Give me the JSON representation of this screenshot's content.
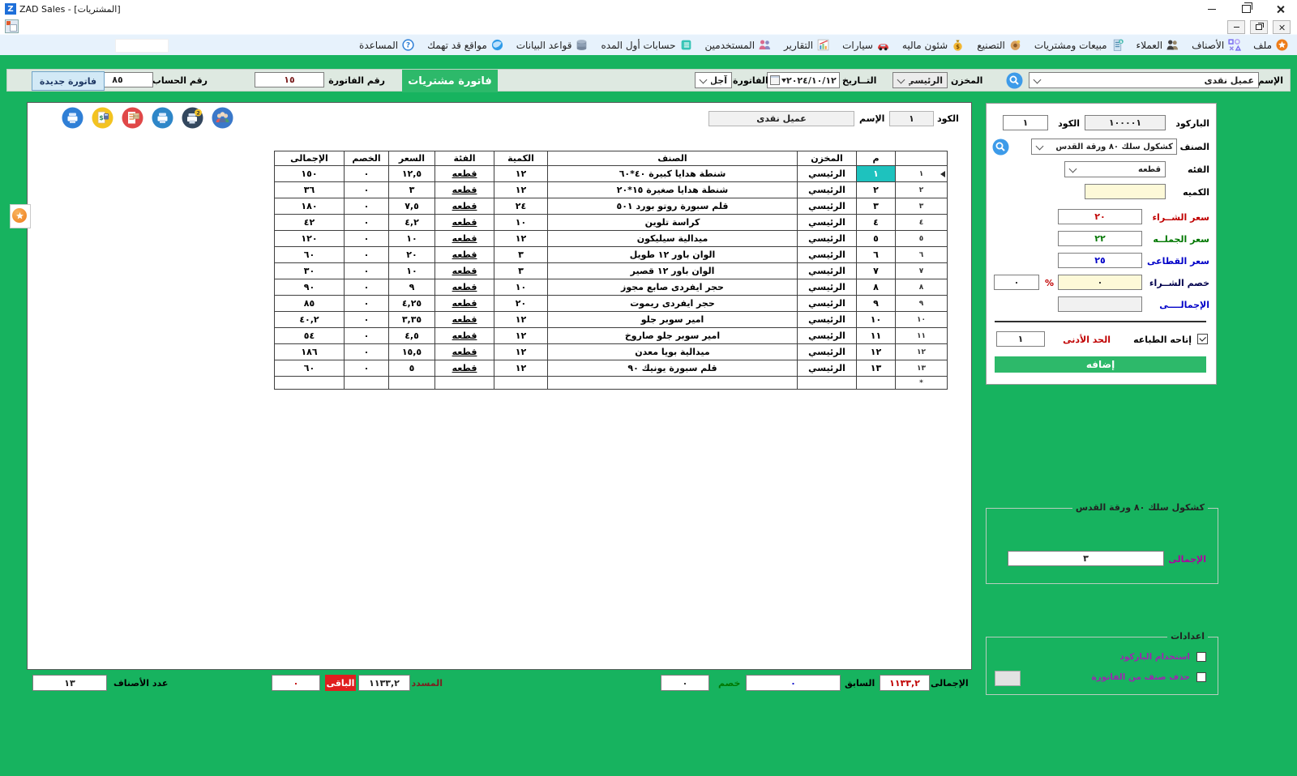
{
  "window": {
    "title": "ZAD Sales - [المشتريات]"
  },
  "menu": {
    "search_value": "",
    "items": [
      {
        "label": "ملف",
        "icon": "star-icon"
      },
      {
        "label": "الأصناف",
        "icon": "shapes-icon"
      },
      {
        "label": "العملاء",
        "icon": "people-icon"
      },
      {
        "label": "مبيعات ومشتريات",
        "icon": "invoice-icon"
      },
      {
        "label": "التصنيع",
        "icon": "manufacturing-icon"
      },
      {
        "label": "شئون ماليه",
        "icon": "money-bag-icon"
      },
      {
        "label": "سيارات",
        "icon": "car-icon"
      },
      {
        "label": "التقارير",
        "icon": "chart-icon"
      },
      {
        "label": "المستخدمين",
        "icon": "users-icon"
      },
      {
        "label": "حسابات أول المده",
        "icon": "ledger-icon"
      },
      {
        "label": "قواعد البيانات",
        "icon": "database-icon"
      },
      {
        "label": "مواقع قد تهمك",
        "icon": "globe-icon"
      },
      {
        "label": "المساعدة",
        "icon": "help-icon"
      }
    ]
  },
  "topbar": {
    "name_label": "الإسم",
    "name_value": "عميل نقدى",
    "store_label": "المخزن",
    "store_value": "الرئيسي",
    "date_label": "التــاريخ",
    "date_value": "٢٠٢٤/١٠/١٢",
    "invoice_type_label": "الفاتورة",
    "invoice_type_value": "آجل",
    "badge": "فاتورة مشتريات",
    "invoice_no_label": "رقم الفاتورة",
    "invoice_no_value": "١٥",
    "account_no_label": "رقم الحساب",
    "account_no_value": "٨٥",
    "new_invoice_button": "فاتورة جديدة"
  },
  "invoice_header": {
    "code_label": "الكود",
    "code_value": "١",
    "name_label": "الإسم",
    "name_value": "عميل نقدى"
  },
  "grid": {
    "columns": {
      "num": "م",
      "store": "المخزن",
      "item": "الصنف",
      "qty": "الكمية",
      "unit": "الفئة",
      "price": "السعر",
      "discount": "الخصم",
      "total": "الإجمالى"
    },
    "new_row_marker": "*",
    "rows": [
      {
        "no": "١",
        "store": "الرئيسي",
        "item": "شنطة هدايا كبيرة ٤٠*٦٠",
        "qty": "١٢",
        "unit": "قطعه",
        "price": "١٢,٥",
        "discount": "٠",
        "total": "١٥٠"
      },
      {
        "no": "٢",
        "store": "الرئيسي",
        "item": "شنطة هدايا صغيرة ١٥*٢٠",
        "qty": "١٢",
        "unit": "قطعه",
        "price": "٣",
        "discount": "٠",
        "total": "٣٦"
      },
      {
        "no": "٣",
        "store": "الرئيسي",
        "item": "قلم سبورة روتو بورد ٥٠١",
        "qty": "٢٤",
        "unit": "قطعه",
        "price": "٧,٥",
        "discount": "٠",
        "total": "١٨٠"
      },
      {
        "no": "٤",
        "store": "الرئيسي",
        "item": "كراسة تلوين",
        "qty": "١٠",
        "unit": "قطعه",
        "price": "٤,٢",
        "discount": "٠",
        "total": "٤٢"
      },
      {
        "no": "٥",
        "store": "الرئيسي",
        "item": "ميدالية سيليكون",
        "qty": "١٢",
        "unit": "قطعه",
        "price": "١٠",
        "discount": "٠",
        "total": "١٢٠"
      },
      {
        "no": "٦",
        "store": "الرئيسي",
        "item": "الوان باور ١٢ طويل",
        "qty": "٣",
        "unit": "قطعه",
        "price": "٢٠",
        "discount": "٠",
        "total": "٦٠"
      },
      {
        "no": "٧",
        "store": "الرئيسي",
        "item": "الوان باور ١٢ قصير",
        "qty": "٣",
        "unit": "قطعه",
        "price": "١٠",
        "discount": "٠",
        "total": "٣٠"
      },
      {
        "no": "٨",
        "store": "الرئيسي",
        "item": "حجر ايفردى صابع مجوز",
        "qty": "١٠",
        "unit": "قطعه",
        "price": "٩",
        "discount": "٠",
        "total": "٩٠"
      },
      {
        "no": "٩",
        "store": "الرئيسي",
        "item": "حجر ايفردى ريموت",
        "qty": "٢٠",
        "unit": "قطعه",
        "price": "٤,٢٥",
        "discount": "٠",
        "total": "٨٥"
      },
      {
        "no": "١٠",
        "store": "الرئيسي",
        "item": "امير سوبر جلو",
        "qty": "١٢",
        "unit": "قطعه",
        "price": "٣,٣٥",
        "discount": "٠",
        "total": "٤٠,٢"
      },
      {
        "no": "١١",
        "store": "الرئيسي",
        "item": "امير سوبر جلو صاروخ",
        "qty": "١٢",
        "unit": "قطعه",
        "price": "٤,٥",
        "discount": "٠",
        "total": "٥٤"
      },
      {
        "no": "١٢",
        "store": "الرئيسي",
        "item": "ميدالية بويا معدن",
        "qty": "١٢",
        "unit": "قطعه",
        "price": "١٥,٥",
        "discount": "٠",
        "total": "١٨٦"
      },
      {
        "no": "١٣",
        "store": "الرئيسي",
        "item": "قلم سبورة يونيك ٩٠",
        "qty": "١٢",
        "unit": "قطعه",
        "price": "٥",
        "discount": "٠",
        "total": "٦٠"
      }
    ]
  },
  "side_panel": {
    "barcode_label": "الباركود",
    "barcode_value": "١٠٠٠٠١",
    "code_label": "الكود",
    "code_value": "١",
    "item_label": "الصنف",
    "item_value": "كشكول سلك ٨٠ ورقة القدس",
    "unit_label": "الفئه",
    "unit_value": "قطعه",
    "qty_label": "الكميه",
    "qty_value": "",
    "buy_price_label": "سعر الشــراء",
    "buy_price_value": "٢٠",
    "wholesale_price_label": "سعر الجملــه",
    "wholesale_price_value": "٢٢",
    "retail_price_label": "سعر القطاعى",
    "retail_price_value": "٢٥",
    "purchase_discount_label": "خصم الشــراء",
    "purchase_discount_value": "٠",
    "percent_sign": "%",
    "discount_pct_value": "٠",
    "total_label": "الإجمالــــى",
    "total_value": "",
    "allow_print_label": "إتاحه الطباعه",
    "min_limit_label": "الحد الأدنى",
    "min_limit_value": "١",
    "add_button": "إضافه"
  },
  "item_group": {
    "title": "كشكول سلك ٨٠ ورقة القدس",
    "total_label": "الإجمالى",
    "total_value": "٣"
  },
  "settings_group": {
    "title": "اعدادات",
    "barcode_option": "استخدام الباركود",
    "delete_option": "حذف صنف من الفاتورة"
  },
  "footer": {
    "total_label": "الإجمالى",
    "total_value": "١١٣٣,٢",
    "previous_label": "السابق",
    "previous_value": "٠",
    "discount_label": "خصم",
    "discount_value": "٠",
    "paid_label": "المسدد",
    "paid_value": "١١٣٣,٢",
    "remaining_label": "الباقى",
    "remaining_value": "٠",
    "items_count_label": "عدد الأصناف",
    "items_count_value": "١٣"
  },
  "colors": {
    "frame_green": "#17b35f",
    "accent_green": "#2db96a",
    "teal_highlight": "#1ec2be",
    "badge_red": "#e01f1f",
    "buy_price_red": "#c00000",
    "wholesale_green": "#007700",
    "retail_blue": "#0000c8",
    "magenta_label": "#b000a0",
    "yellow_field": "#fdf9d8",
    "menubar_blue": "#e7f2fc",
    "topbar_grey_green": "#dee9e1"
  }
}
